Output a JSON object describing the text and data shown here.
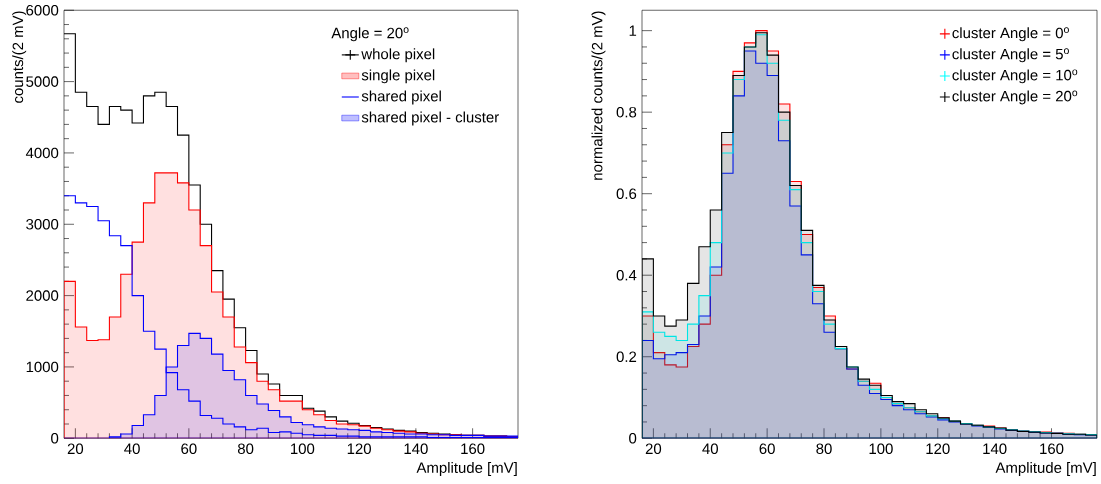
{
  "chart_data": [
    {
      "type": "histogram",
      "xlabel": "Amplitude [mV]",
      "ylabel": "counts/(2 mV)",
      "legend_title": "Angle = 20$^{o}$",
      "bins": [
        16,
        20,
        24,
        28,
        32,
        36,
        40,
        44,
        48,
        52,
        56,
        60,
        64,
        68,
        72,
        76,
        80,
        84,
        88,
        92,
        96,
        100,
        104,
        108,
        112,
        116,
        120,
        124,
        128,
        132,
        136,
        140,
        144,
        148,
        152,
        156,
        160,
        164,
        168,
        172,
        176
      ],
      "xlim": [
        16,
        176
      ],
      "xticks": [
        20,
        40,
        60,
        80,
        100,
        120,
        140,
        160
      ],
      "ylim": [
        0,
        6000
      ],
      "yticks": [
        0,
        1000,
        2000,
        3000,
        4000,
        5000,
        6000
      ],
      "legend": "top right",
      "series": [
        {
          "name": "whole pixel",
          "color": "#000000",
          "marker": "cross",
          "values": [
            5670,
            4850,
            4650,
            4400,
            4650,
            4600,
            4420,
            4800,
            4850,
            4650,
            4250,
            3550,
            3000,
            2350,
            1950,
            1550,
            1230,
            900,
            760,
            600,
            600,
            420,
            380,
            300,
            240,
            210,
            180,
            150,
            130,
            110,
            100,
            80,
            70,
            60,
            50,
            40,
            40,
            30,
            30,
            20
          ]
        },
        {
          "name": "single pixel",
          "color": "#ff0000",
          "values": [
            2200,
            1560,
            1370,
            1380,
            1700,
            2300,
            2750,
            3300,
            3720,
            3720,
            3580,
            3200,
            2700,
            2050,
            1700,
            1280,
            1060,
            800,
            680,
            520,
            520,
            400,
            330,
            250,
            200,
            190,
            170,
            140,
            120,
            100,
            90,
            70,
            60,
            50,
            50,
            40,
            40,
            30,
            30,
            20
          ]
        },
        {
          "name": "shared pixel",
          "color": "#0000ff",
          "values": [
            3400,
            3300,
            3250,
            3050,
            2840,
            2700,
            2000,
            1500,
            1250,
            920,
            680,
            520,
            320,
            280,
            200,
            160,
            120,
            140,
            80,
            90,
            70,
            50,
            40,
            40,
            30,
            30,
            20,
            20,
            20,
            20,
            20,
            20,
            10,
            10,
            10,
            10,
            10,
            10,
            10,
            10
          ]
        },
        {
          "name": "shared pixel - cluster",
          "color": "#0000ff",
          "values": [
            0,
            0,
            0,
            0,
            20,
            60,
            180,
            330,
            600,
            1000,
            1300,
            1470,
            1400,
            1180,
            950,
            820,
            600,
            480,
            390,
            300,
            220,
            190,
            160,
            140,
            130,
            120,
            110,
            90,
            80,
            70,
            60,
            60,
            50,
            50,
            40,
            40,
            40,
            30,
            30,
            30
          ]
        }
      ]
    },
    {
      "type": "histogram",
      "xlabel": "Amplitude [mV]",
      "ylabel": "normalized counts/(2 mV)",
      "bins": [
        16,
        20,
        24,
        28,
        32,
        36,
        40,
        44,
        48,
        52,
        56,
        60,
        64,
        68,
        72,
        76,
        80,
        84,
        88,
        92,
        96,
        100,
        104,
        108,
        112,
        116,
        120,
        124,
        128,
        132,
        136,
        140,
        144,
        148,
        152,
        156,
        160,
        164,
        168,
        172,
        176
      ],
      "xlim": [
        16,
        176
      ],
      "xticks": [
        20,
        40,
        60,
        80,
        100,
        120,
        140,
        160
      ],
      "ylim": [
        0,
        1.05
      ],
      "yticks": [
        0,
        0.2,
        0.4,
        0.6,
        0.8,
        1
      ],
      "legend": "top right",
      "series": [
        {
          "name": "cluster Angle = 0$^{o}$",
          "color": "#ff0000",
          "marker": "cross",
          "values": [
            0.3,
            0.21,
            0.18,
            0.175,
            0.225,
            0.28,
            0.4,
            0.72,
            0.9,
            0.97,
            1.0,
            0.95,
            0.82,
            0.63,
            0.5,
            0.37,
            0.3,
            0.22,
            0.17,
            0.14,
            0.135,
            0.1,
            0.085,
            0.075,
            0.065,
            0.055,
            0.05,
            0.042,
            0.035,
            0.032,
            0.03,
            0.025,
            0.02,
            0.018,
            0.016,
            0.015,
            0.013,
            0.012,
            0.01,
            0.008
          ]
        },
        {
          "name": "cluster Angle = 5$^{o}$",
          "color": "#0000ff",
          "marker": "cross",
          "values": [
            0.24,
            0.195,
            0.205,
            0.21,
            0.23,
            0.3,
            0.42,
            0.65,
            0.84,
            0.95,
            0.92,
            0.89,
            0.73,
            0.57,
            0.45,
            0.33,
            0.26,
            0.22,
            0.17,
            0.13,
            0.11,
            0.095,
            0.08,
            0.07,
            0.06,
            0.052,
            0.045,
            0.04,
            0.035,
            0.03,
            0.027,
            0.023,
            0.02,
            0.017,
            0.015,
            0.013,
            0.012,
            0.01,
            0.009,
            0.008
          ]
        },
        {
          "name": "cluster Angle = 10$^{o}$",
          "color": "#00ffff",
          "marker": "cross",
          "values": [
            0.31,
            0.26,
            0.25,
            0.24,
            0.28,
            0.35,
            0.48,
            0.7,
            0.88,
            0.96,
            0.99,
            0.92,
            0.78,
            0.61,
            0.48,
            0.36,
            0.28,
            0.22,
            0.175,
            0.14,
            0.12,
            0.1,
            0.085,
            0.075,
            0.065,
            0.055,
            0.048,
            0.042,
            0.036,
            0.032,
            0.028,
            0.024,
            0.021,
            0.018,
            0.016,
            0.014,
            0.012,
            0.011,
            0.01,
            0.009
          ]
        },
        {
          "name": "cluster Angle = 20$^{o}$",
          "color": "#000000",
          "marker": "cross",
          "values": [
            0.44,
            0.3,
            0.275,
            0.29,
            0.38,
            0.47,
            0.56,
            0.75,
            0.89,
            0.96,
            0.995,
            0.94,
            0.8,
            0.62,
            0.51,
            0.375,
            0.29,
            0.225,
            0.175,
            0.145,
            0.13,
            0.105,
            0.09,
            0.085,
            0.07,
            0.06,
            0.05,
            0.042,
            0.035,
            0.032,
            0.028,
            0.025,
            0.02,
            0.017,
            0.015,
            0.013,
            0.012,
            0.01,
            0.01,
            0.008
          ]
        }
      ]
    }
  ]
}
